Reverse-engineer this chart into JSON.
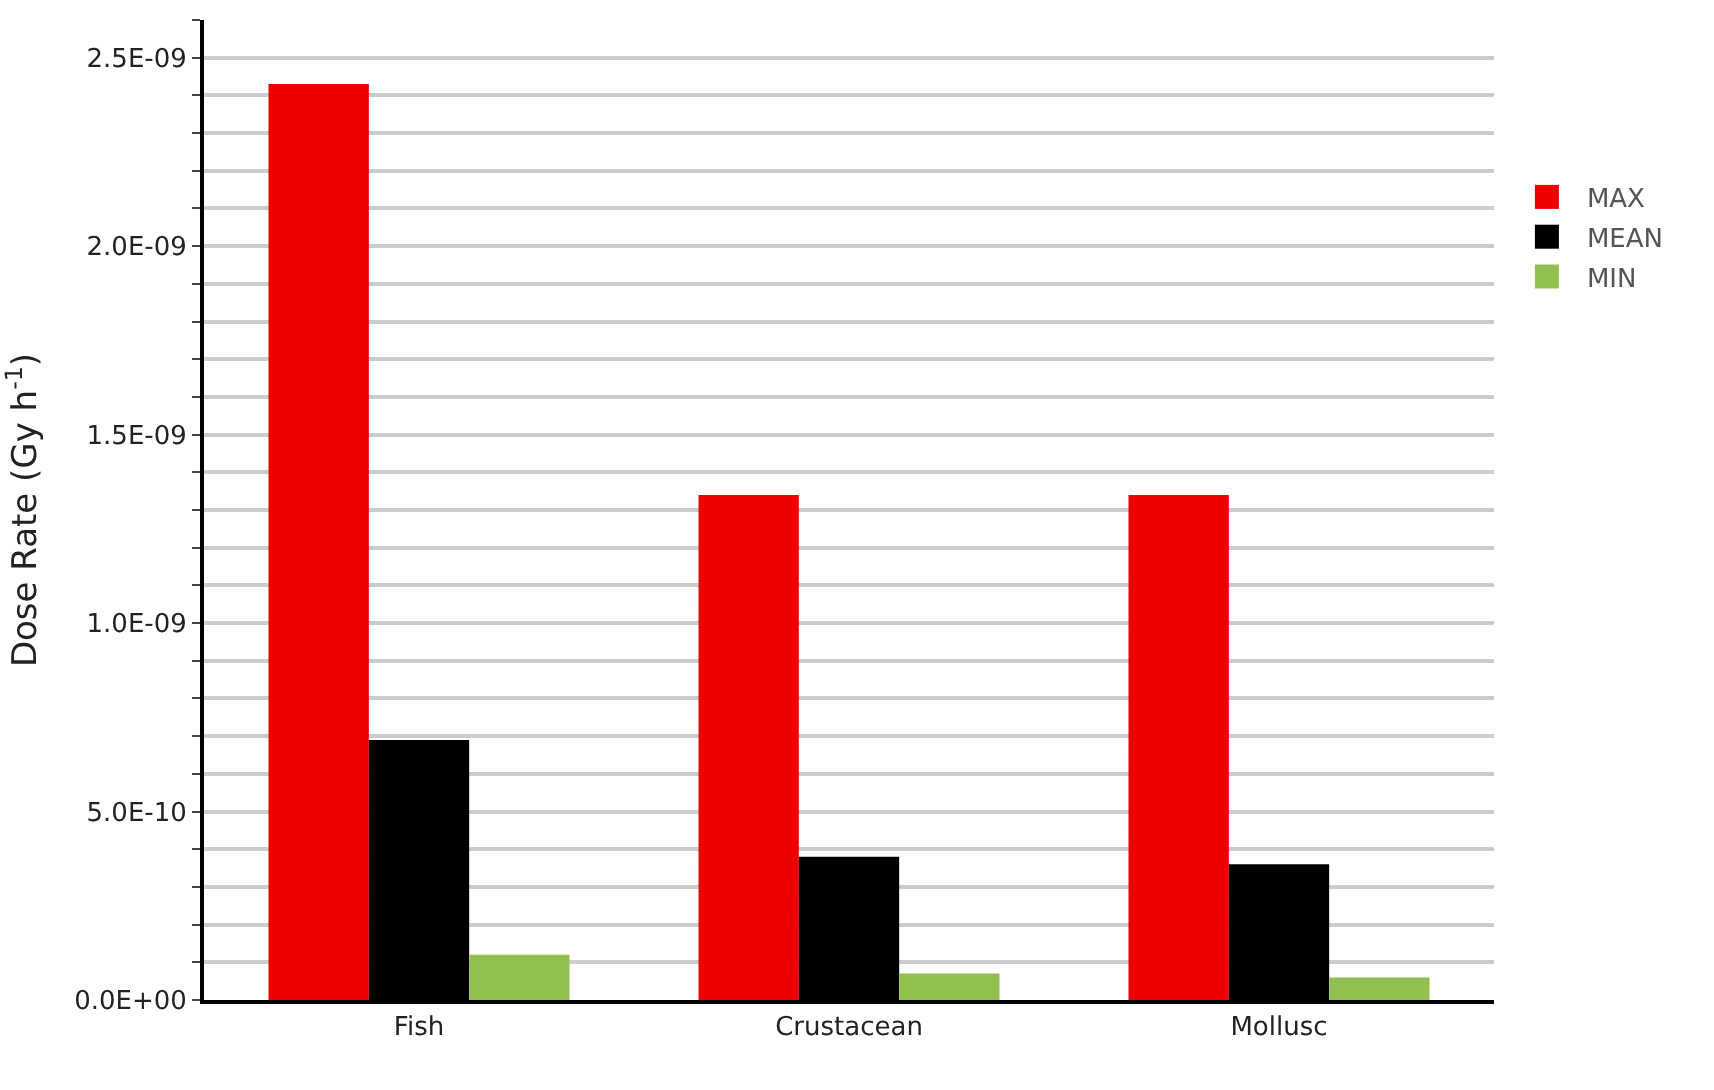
{
  "chart_data": {
    "type": "bar",
    "ylabel": "Dose Rate (Gy h$^{-1}$)",
    "categories": [
      "Fish",
      "Crustacean",
      "Mollusc"
    ],
    "series": [
      {
        "name": "MAX",
        "color": "#ee0000",
        "values": [
          2.43e-09,
          1.34e-09,
          1.34e-09
        ]
      },
      {
        "name": "MEAN",
        "color": "#000000",
        "values": [
          6.9e-10,
          3.8e-10,
          3.6e-10
        ]
      },
      {
        "name": "MIN",
        "color": "#92c050",
        "values": [
          1.2e-10,
          7e-11,
          6e-11
        ]
      }
    ],
    "ylim": [
      0,
      2.6e-09
    ],
    "yticks": [
      {
        "value": 0,
        "label": "0.0E+00"
      },
      {
        "value": 1e-10,
        "label": null
      },
      {
        "value": 2e-10,
        "label": null
      },
      {
        "value": 3e-10,
        "label": null
      },
      {
        "value": 4e-10,
        "label": null
      },
      {
        "value": 5e-10,
        "label": "5.0E-10"
      },
      {
        "value": 6e-10,
        "label": null
      },
      {
        "value": 7e-10,
        "label": null
      },
      {
        "value": 8e-10,
        "label": null
      },
      {
        "value": 9e-10,
        "label": null
      },
      {
        "value": 1e-09,
        "label": "1.0E-09"
      },
      {
        "value": 1.1e-09,
        "label": null
      },
      {
        "value": 1.2e-09,
        "label": null
      },
      {
        "value": 1.3e-09,
        "label": null
      },
      {
        "value": 1.4e-09,
        "label": null
      },
      {
        "value": 1.5e-09,
        "label": "1.5E-09"
      },
      {
        "value": 1.6e-09,
        "label": null
      },
      {
        "value": 1.7e-09,
        "label": null
      },
      {
        "value": 1.8e-09,
        "label": null
      },
      {
        "value": 1.9e-09,
        "label": null
      },
      {
        "value": 2e-09,
        "label": "2.0E-09"
      },
      {
        "value": 2.1e-09,
        "label": null
      },
      {
        "value": 2.2e-09,
        "label": null
      },
      {
        "value": 2.3e-09,
        "label": null
      },
      {
        "value": 2.4e-09,
        "label": null
      },
      {
        "value": 2.5e-09,
        "label": "2.5E-09"
      },
      {
        "value": 2.6e-09,
        "label": null
      }
    ],
    "grid": "y",
    "legend": "right"
  }
}
